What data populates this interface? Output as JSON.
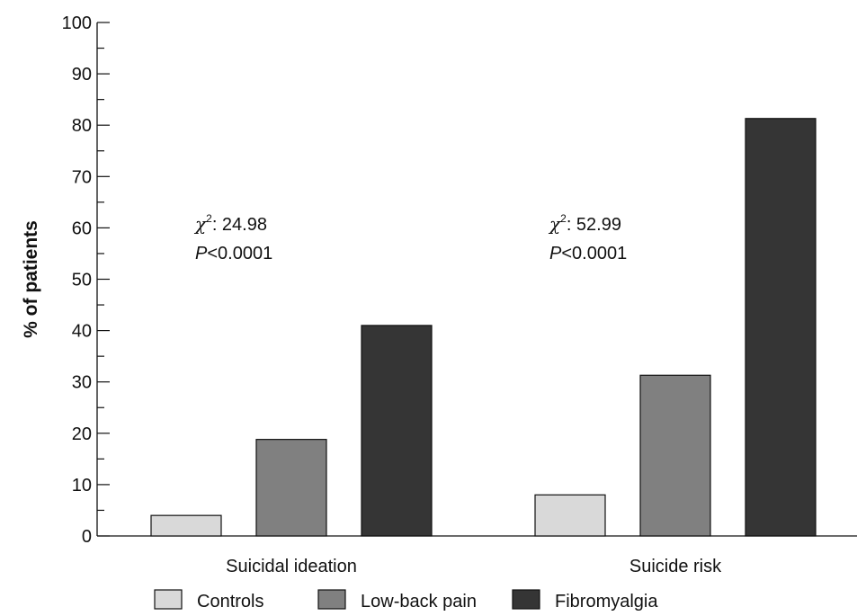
{
  "chart_data": {
    "type": "bar",
    "title": "",
    "xlabel": "",
    "ylabel": "% of patients",
    "ylim": [
      0,
      100
    ],
    "ytick_major": [
      0,
      10,
      20,
      30,
      40,
      50,
      60,
      70,
      80,
      90,
      100
    ],
    "ytick_minor_step": 5,
    "categories": [
      "Suicidal ideation",
      "Suicide risk"
    ],
    "series": [
      {
        "name": "Controls",
        "color": "#d9d9d9",
        "values": [
          4,
          8
        ]
      },
      {
        "name": "Low-back pain",
        "color": "#808080",
        "values": [
          18.8,
          31.3
        ]
      },
      {
        "name": "Fibromyalgia",
        "color": "#353535",
        "values": [
          41,
          81.3
        ]
      }
    ],
    "annotations": [
      {
        "group": 0,
        "chi_symbol": "χ",
        "chi_sup": "2",
        "chi_value": ": 24.98",
        "p_symbol": "P",
        "p_value": "<0.0001"
      },
      {
        "group": 1,
        "chi_symbol": "χ",
        "chi_sup": "2",
        "chi_value": ": 52.99",
        "p_symbol": "P",
        "p_value": "<0.0001"
      }
    ],
    "legend_position": "bottom",
    "grid": false
  }
}
